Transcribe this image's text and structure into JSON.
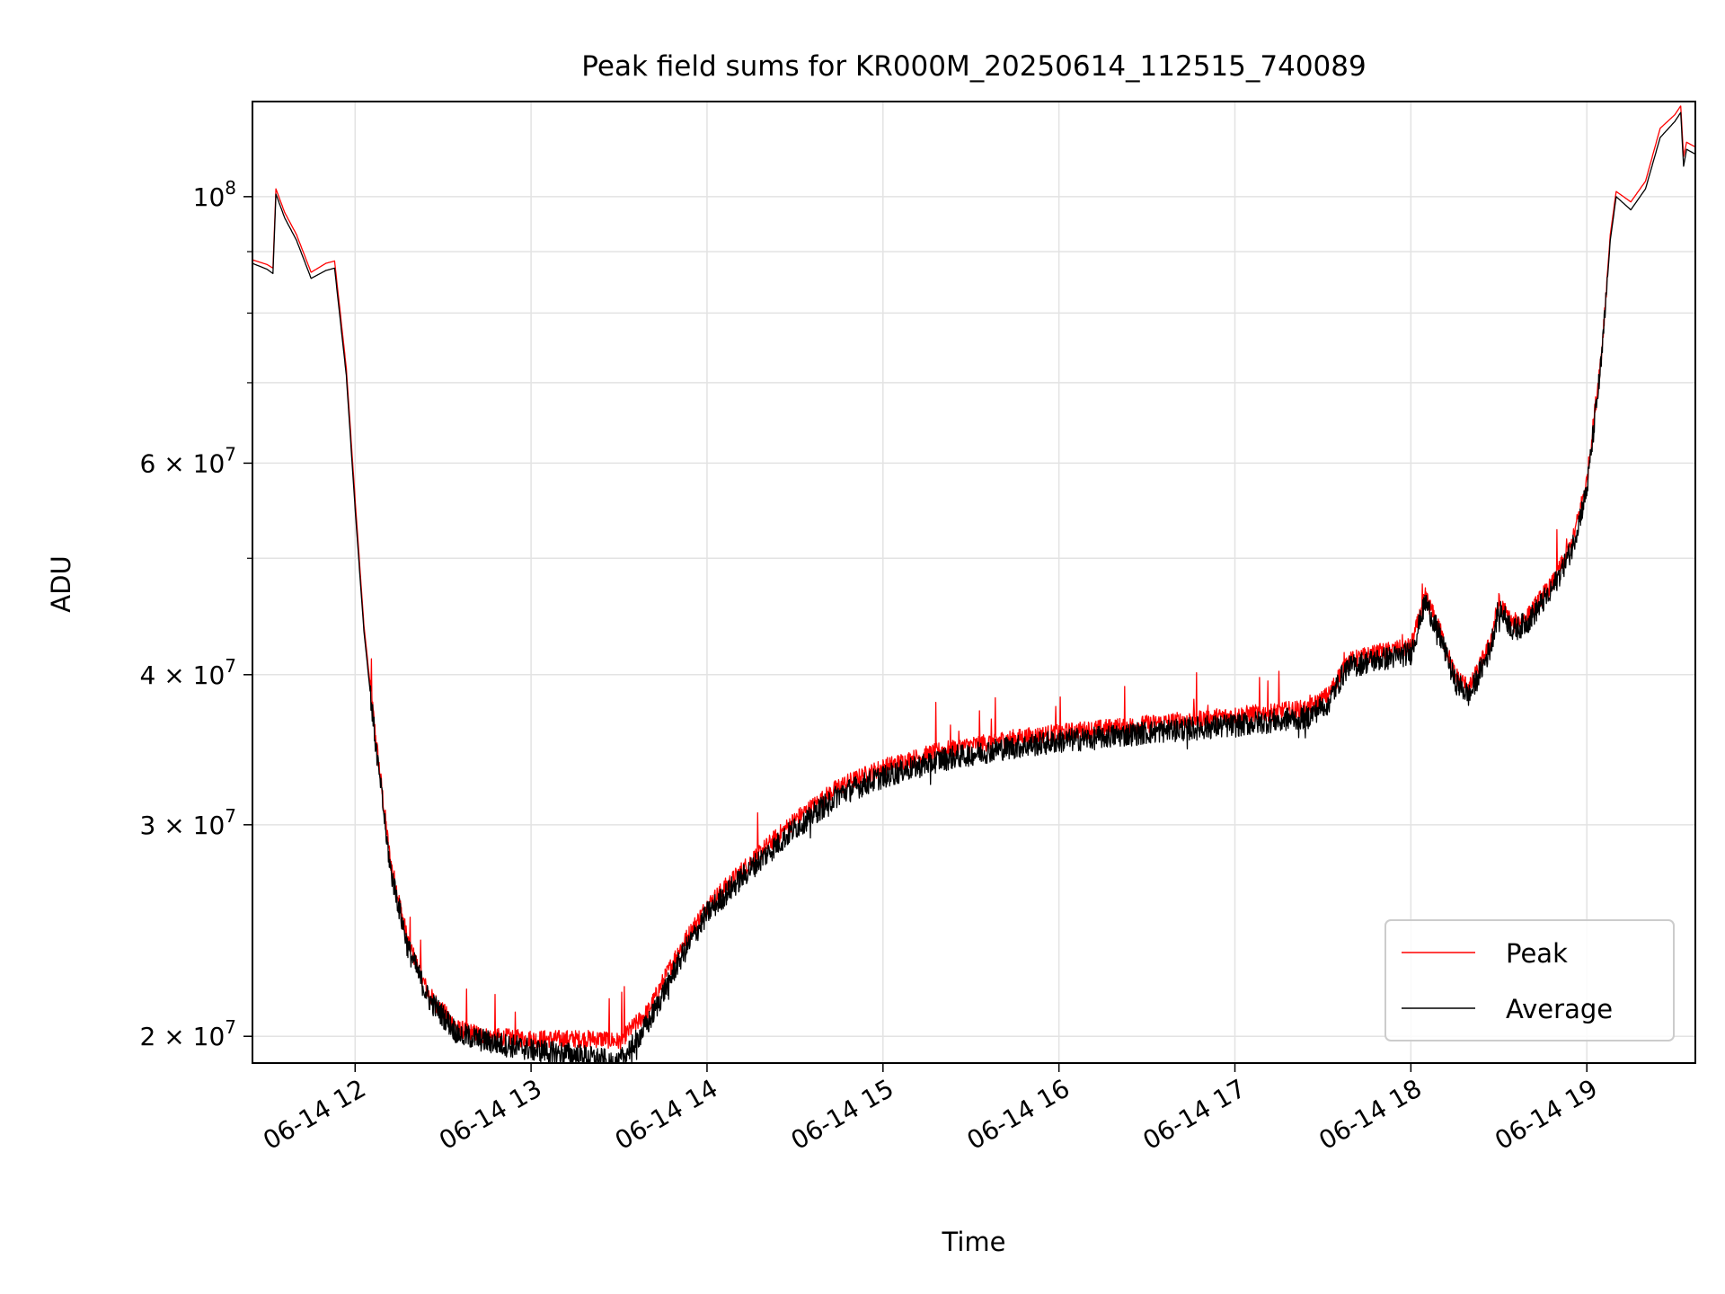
{
  "chart_data": {
    "type": "line",
    "title": "Peak field sums for KR000M_20250614_112515_740089",
    "xlabel": "Time",
    "ylabel": "ADU",
    "y_scale": "log",
    "ylim": [
      19000000,
      120000000
    ],
    "xlim": [
      "2025-06-14 11:25",
      "2025-06-14 19:37"
    ],
    "grid": true,
    "legend_position": "bottom-right",
    "x_ticks": [
      {
        "value": "2025-06-14 12:00",
        "label": "06-14 12"
      },
      {
        "value": "2025-06-14 13:00",
        "label": "06-14 13"
      },
      {
        "value": "2025-06-14 14:00",
        "label": "06-14 14"
      },
      {
        "value": "2025-06-14 15:00",
        "label": "06-14 15"
      },
      {
        "value": "2025-06-14 16:00",
        "label": "06-14 16"
      },
      {
        "value": "2025-06-14 17:00",
        "label": "06-14 17"
      },
      {
        "value": "2025-06-14 18:00",
        "label": "06-14 18"
      },
      {
        "value": "2025-06-14 19:00",
        "label": "06-14 19"
      }
    ],
    "y_major_ticks": [
      {
        "value": 100000000,
        "base": "10",
        "exp": "8"
      },
      {
        "value": 60000000,
        "mant": "6",
        "base": "10",
        "exp": "7"
      },
      {
        "value": 40000000,
        "mant": "4",
        "base": "10",
        "exp": "7"
      },
      {
        "value": 30000000,
        "mant": "3",
        "base": "10",
        "exp": "7"
      },
      {
        "value": 20000000,
        "mant": "2",
        "base": "10",
        "exp": "7"
      }
    ],
    "y_minor_ticks": [
      90000000,
      80000000,
      70000000,
      50000000
    ],
    "series": [
      {
        "name": "Peak",
        "color": "#ff0000",
        "noise": 0.015,
        "points": [
          [
            "2025-06-14 11:25",
            88600000
          ],
          [
            "2025-06-14 11:30",
            87800000
          ],
          [
            "2025-06-14 11:32",
            87200000
          ],
          [
            "2025-06-14 11:33",
            101500000
          ],
          [
            "2025-06-14 11:36",
            97000000
          ],
          [
            "2025-06-14 11:40",
            93000000
          ],
          [
            "2025-06-14 11:45",
            86500000
          ],
          [
            "2025-06-14 11:50",
            88000000
          ],
          [
            "2025-06-14 11:53",
            88400000
          ],
          [
            "2025-06-14 11:57",
            72000000
          ],
          [
            "2025-06-14 12:00",
            56000000
          ],
          [
            "2025-06-14 12:03",
            44000000
          ],
          [
            "2025-06-14 12:07",
            35500000
          ],
          [
            "2025-06-14 12:12",
            28000000
          ],
          [
            "2025-06-14 12:18",
            24000000
          ],
          [
            "2025-06-14 12:25",
            21700000
          ],
          [
            "2025-06-14 12:35",
            20300000
          ],
          [
            "2025-06-14 12:45",
            20000000
          ],
          [
            "2025-06-14 13:00",
            19900000
          ],
          [
            "2025-06-14 13:15",
            19900000
          ],
          [
            "2025-06-14 13:25",
            19900000
          ],
          [
            "2025-06-14 13:30",
            19800000
          ],
          [
            "2025-06-14 13:40",
            21000000
          ],
          [
            "2025-06-14 13:50",
            23500000
          ],
          [
            "2025-06-14 14:00",
            25700000
          ],
          [
            "2025-06-14 14:15",
            28000000
          ],
          [
            "2025-06-14 14:30",
            30300000
          ],
          [
            "2025-06-14 14:45",
            32300000
          ],
          [
            "2025-06-14 15:00",
            33500000
          ],
          [
            "2025-06-14 15:20",
            34600000
          ],
          [
            "2025-06-14 15:40",
            35300000
          ],
          [
            "2025-06-14 16:00",
            35800000
          ],
          [
            "2025-06-14 16:20",
            36200000
          ],
          [
            "2025-06-14 16:40",
            36600000
          ],
          [
            "2025-06-14 17:00",
            37000000
          ],
          [
            "2025-06-14 17:25",
            37500000
          ],
          [
            "2025-06-14 17:32",
            38500000
          ],
          [
            "2025-06-14 17:38",
            41000000
          ],
          [
            "2025-06-14 17:45",
            41500000
          ],
          [
            "2025-06-14 17:55",
            42000000
          ],
          [
            "2025-06-14 18:00",
            42200000
          ],
          [
            "2025-06-14 18:05",
            46500000
          ],
          [
            "2025-06-14 18:10",
            43500000
          ],
          [
            "2025-06-14 18:15",
            40000000
          ],
          [
            "2025-06-14 18:20",
            39000000
          ],
          [
            "2025-06-14 18:27",
            42500000
          ],
          [
            "2025-06-14 18:30",
            46000000
          ],
          [
            "2025-06-14 18:35",
            44000000
          ],
          [
            "2025-06-14 18:40",
            44800000
          ],
          [
            "2025-06-14 18:45",
            46600000
          ],
          [
            "2025-06-14 18:48",
            47500000
          ],
          [
            "2025-06-14 18:55",
            51500000
          ],
          [
            "2025-06-14 19:00",
            58000000
          ],
          [
            "2025-06-14 19:05",
            74000000
          ],
          [
            "2025-06-14 19:08",
            93000000
          ],
          [
            "2025-06-14 19:10",
            101000000
          ],
          [
            "2025-06-14 19:15",
            99000000
          ],
          [
            "2025-06-14 19:20",
            103000000
          ],
          [
            "2025-06-14 19:25",
            114000000
          ],
          [
            "2025-06-14 19:30",
            117000000
          ],
          [
            "2025-06-14 19:32",
            119000000
          ],
          [
            "2025-06-14 19:33",
            108000000
          ],
          [
            "2025-06-14 19:34",
            111000000
          ],
          [
            "2025-06-14 19:37",
            110000000
          ]
        ]
      },
      {
        "name": "Average",
        "color": "#000000",
        "noise": 0.02,
        "points": [
          [
            "2025-06-14 11:25",
            88000000
          ],
          [
            "2025-06-14 11:30",
            87000000
          ],
          [
            "2025-06-14 11:32",
            86300000
          ],
          [
            "2025-06-14 11:33",
            100500000
          ],
          [
            "2025-06-14 11:36",
            96000000
          ],
          [
            "2025-06-14 11:40",
            92000000
          ],
          [
            "2025-06-14 11:45",
            85500000
          ],
          [
            "2025-06-14 11:50",
            86800000
          ],
          [
            "2025-06-14 11:53",
            87200000
          ],
          [
            "2025-06-14 11:57",
            71000000
          ],
          [
            "2025-06-14 12:00",
            55000000
          ],
          [
            "2025-06-14 12:03",
            43500000
          ],
          [
            "2025-06-14 12:07",
            35000000
          ],
          [
            "2025-06-14 12:12",
            27600000
          ],
          [
            "2025-06-14 12:18",
            23700000
          ],
          [
            "2025-06-14 12:25",
            21500000
          ],
          [
            "2025-06-14 12:35",
            20100000
          ],
          [
            "2025-06-14 12:45",
            19800000
          ],
          [
            "2025-06-14 13:00",
            19500000
          ],
          [
            "2025-06-14 13:15",
            19300000
          ],
          [
            "2025-06-14 13:25",
            19100000
          ],
          [
            "2025-06-14 13:30",
            19000000
          ],
          [
            "2025-06-14 13:40",
            20500000
          ],
          [
            "2025-06-14 13:50",
            23000000
          ],
          [
            "2025-06-14 14:00",
            25300000
          ],
          [
            "2025-06-14 14:15",
            27600000
          ],
          [
            "2025-06-14 14:30",
            29800000
          ],
          [
            "2025-06-14 14:45",
            31800000
          ],
          [
            "2025-06-14 15:00",
            32900000
          ],
          [
            "2025-06-14 15:20",
            34000000
          ],
          [
            "2025-06-14 15:40",
            34700000
          ],
          [
            "2025-06-14 16:00",
            35200000
          ],
          [
            "2025-06-14 16:20",
            35600000
          ],
          [
            "2025-06-14 16:40",
            36000000
          ],
          [
            "2025-06-14 17:00",
            36300000
          ],
          [
            "2025-06-14 17:25",
            36900000
          ],
          [
            "2025-06-14 17:32",
            38000000
          ],
          [
            "2025-06-14 17:38",
            40500000
          ],
          [
            "2025-06-14 17:45",
            41000000
          ],
          [
            "2025-06-14 17:55",
            41400000
          ],
          [
            "2025-06-14 18:00",
            41700000
          ],
          [
            "2025-06-14 18:05",
            46000000
          ],
          [
            "2025-06-14 18:10",
            43000000
          ],
          [
            "2025-06-14 18:15",
            39500000
          ],
          [
            "2025-06-14 18:20",
            38400000
          ],
          [
            "2025-06-14 18:27",
            42000000
          ],
          [
            "2025-06-14 18:30",
            45500000
          ],
          [
            "2025-06-14 18:35",
            43500000
          ],
          [
            "2025-06-14 18:40",
            44300000
          ],
          [
            "2025-06-14 18:45",
            46000000
          ],
          [
            "2025-06-14 18:48",
            47000000
          ],
          [
            "2025-06-14 18:55",
            51000000
          ],
          [
            "2025-06-14 19:00",
            57000000
          ],
          [
            "2025-06-14 19:05",
            73000000
          ],
          [
            "2025-06-14 19:08",
            92000000
          ],
          [
            "2025-06-14 19:10",
            100000000
          ],
          [
            "2025-06-14 19:15",
            97500000
          ],
          [
            "2025-06-14 19:20",
            101500000
          ],
          [
            "2025-06-14 19:25",
            112000000
          ],
          [
            "2025-06-14 19:30",
            115500000
          ],
          [
            "2025-06-14 19:32",
            117500000
          ],
          [
            "2025-06-14 19:33",
            106000000
          ],
          [
            "2025-06-14 19:34",
            109500000
          ],
          [
            "2025-06-14 19:37",
            108500000
          ]
        ]
      }
    ]
  }
}
